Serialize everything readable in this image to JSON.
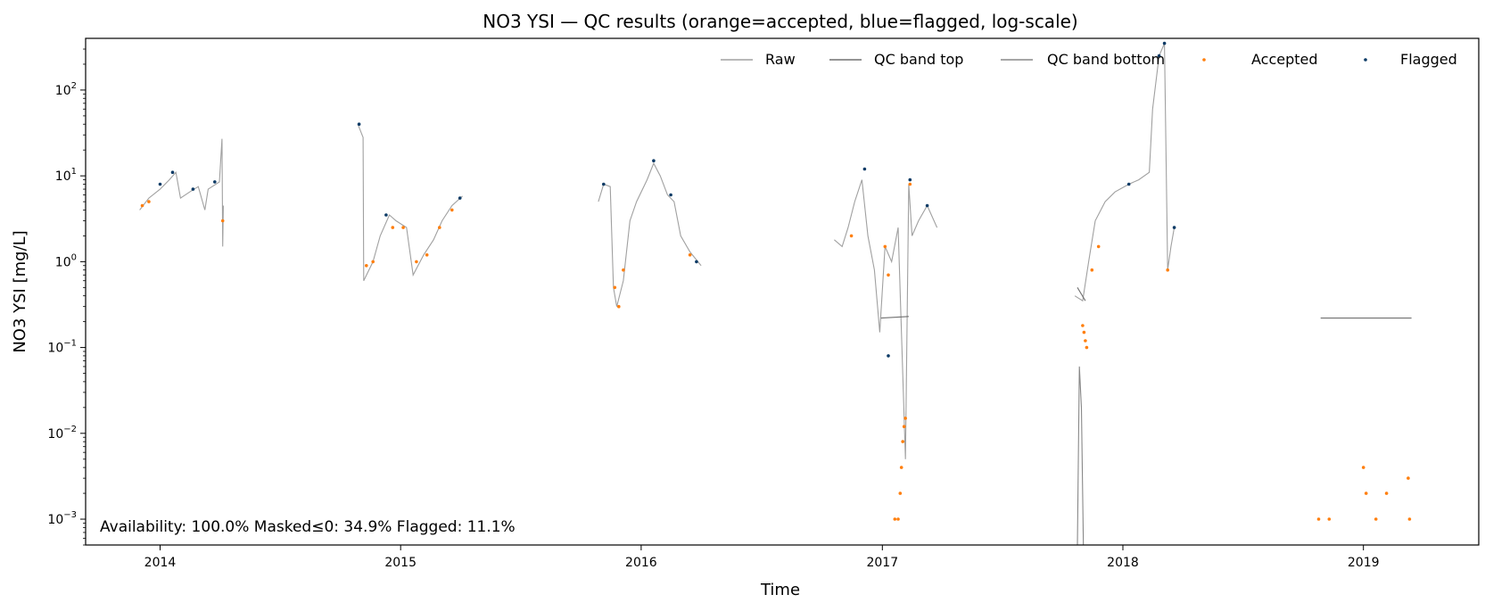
{
  "chart_data": {
    "type": "line",
    "title": "NO3 YSI — QC results (orange=accepted, blue=flagged, log-scale)",
    "xlabel": "Time",
    "ylabel": "NO3 YSI [mg/L]",
    "y_scale": "log",
    "xlim": [
      "2013-09-10",
      "2019-06-25"
    ],
    "ylim": [
      0.0005,
      400
    ],
    "x_ticks": [
      "2014",
      "2015",
      "2016",
      "2017",
      "2018",
      "2019"
    ],
    "y_ticks": [
      {
        "value": 0.001,
        "base": "10",
        "exp": "−3"
      },
      {
        "value": 0.01,
        "base": "10",
        "exp": "−2"
      },
      {
        "value": 0.1,
        "base": "10",
        "exp": "−1"
      },
      {
        "value": 1,
        "base": "10",
        "exp": "0"
      },
      {
        "value": 10,
        "base": "10",
        "exp": "1"
      },
      {
        "value": 100,
        "base": "10",
        "exp": "2"
      }
    ],
    "legend_position": "top-right",
    "grid": false,
    "annotation": "Availability: 100.0%   Masked≤0: 34.9%   Flagged: 11.1%",
    "series": [
      {
        "name": "Raw",
        "style": "line",
        "color": "#a0a0a0",
        "segments": [
          [
            [
              "2013-12-01",
              4.0
            ],
            [
              "2013-12-15",
              5.5
            ],
            [
              "2014-01-01",
              7.0
            ],
            [
              "2014-01-15",
              9.0
            ],
            [
              "2014-01-25",
              11.0
            ],
            [
              "2014-02-01",
              5.5
            ],
            [
              "2014-02-15",
              6.5
            ],
            [
              "2014-02-28",
              7.5
            ],
            [
              "2014-03-10",
              4.0
            ],
            [
              "2014-03-15",
              7.0
            ],
            [
              "2014-04-01",
              8.5
            ],
            [
              "2014-04-05",
              27.0
            ],
            [
              "2014-04-06",
              1.5
            ],
            [
              "2014-04-07",
              4.5
            ]
          ],
          [
            [
              "2014-10-28",
              40.0
            ],
            [
              "2014-11-05",
              28.0
            ],
            [
              "2014-11-06",
              0.6
            ],
            [
              "2014-11-20",
              1.0
            ],
            [
              "2014-12-01",
              2.0
            ],
            [
              "2014-12-15",
              3.5
            ],
            [
              "2014-12-25",
              3.0
            ],
            [
              "2015-01-10",
              2.5
            ],
            [
              "2015-01-20",
              0.7
            ],
            [
              "2015-02-05",
              1.2
            ],
            [
              "2015-02-20",
              1.8
            ],
            [
              "2015-03-05",
              3.0
            ],
            [
              "2015-03-20",
              4.5
            ],
            [
              "2015-04-05",
              5.8
            ]
          ],
          [
            [
              "2015-10-28",
              5.0
            ],
            [
              "2015-11-05",
              8.0
            ],
            [
              "2015-11-15",
              7.5
            ],
            [
              "2015-11-20",
              0.5
            ],
            [
              "2015-11-25",
              0.3
            ],
            [
              "2015-12-05",
              0.6
            ],
            [
              "2015-12-15",
              3.0
            ],
            [
              "2015-12-25",
              5.0
            ],
            [
              "2016-01-10",
              9.0
            ],
            [
              "2016-01-20",
              14.0
            ],
            [
              "2016-01-30",
              10.0
            ],
            [
              "2016-02-10",
              6.0
            ],
            [
              "2016-02-20",
              5.0
            ],
            [
              "2016-03-01",
              2.0
            ],
            [
              "2016-03-15",
              1.3
            ],
            [
              "2016-04-01",
              0.9
            ]
          ],
          [
            [
              "2016-10-20",
              1.8
            ],
            [
              "2016-11-01",
              1.5
            ],
            [
              "2016-11-10",
              2.5
            ],
            [
              "2016-11-20",
              5.0
            ],
            [
              "2016-12-01",
              9.0
            ],
            [
              "2016-12-10",
              2.0
            ],
            [
              "2016-12-20",
              0.8
            ],
            [
              "2016-12-28",
              0.15
            ],
            [
              "2017-01-05",
              1.5
            ],
            [
              "2017-01-15",
              1.0
            ],
            [
              "2017-01-25",
              2.5
            ],
            [
              "2017-02-05",
              0.005
            ],
            [
              "2017-02-10",
              8.0
            ],
            [
              "2017-02-15",
              2.0
            ],
            [
              "2017-02-25",
              3.0
            ],
            [
              "2017-03-10",
              4.5
            ],
            [
              "2017-03-25",
              2.5
            ]
          ],
          [
            [
              "2017-10-20",
              0.4
            ],
            [
              "2017-11-01",
              0.35
            ],
            [
              "2017-11-10",
              1.0
            ],
            [
              "2017-11-20",
              3.0
            ],
            [
              "2017-12-05",
              5.0
            ],
            [
              "2017-12-20",
              6.5
            ],
            [
              "2018-01-10",
              8.0
            ],
            [
              "2018-01-25",
              9.0
            ],
            [
              "2018-02-10",
              11.0
            ],
            [
              "2018-02-15",
              60.0
            ],
            [
              "2018-02-25",
              250.0
            ],
            [
              "2018-03-05",
              350.0
            ],
            [
              "2018-03-10",
              0.8
            ],
            [
              "2018-03-15",
              1.5
            ],
            [
              "2018-03-20",
              2.5
            ]
          ]
        ]
      },
      {
        "name": "QC band top",
        "style": "line",
        "color": "#707070",
        "segments": [
          [
            [
              "2016-12-30",
              0.22
            ],
            [
              "2017-02-10",
              0.23
            ]
          ],
          [
            [
              "2017-10-24",
              0.5
            ],
            [
              "2017-11-05",
              0.35
            ]
          ],
          [
            [
              "2018-10-28",
              0.22
            ],
            [
              "2019-03-15",
              0.22
            ]
          ]
        ]
      },
      {
        "name": "QC band bottom",
        "style": "line",
        "color": "#888888",
        "segments": [
          [
            [
              "2017-10-24",
              0.0005
            ],
            [
              "2017-10-27",
              0.06
            ],
            [
              "2017-10-30",
              0.02
            ],
            [
              "2017-11-02",
              0.0005
            ]
          ]
        ]
      },
      {
        "name": "Accepted",
        "style": "points",
        "color": "#ff7f0e",
        "points": [
          [
            "2013-12-05",
            4.5
          ],
          [
            "2013-12-15",
            5.0
          ],
          [
            "2014-04-06",
            3.0
          ],
          [
            "2014-11-10",
            0.9
          ],
          [
            "2014-11-20",
            1.0
          ],
          [
            "2014-12-20",
            2.5
          ],
          [
            "2015-01-05",
            2.5
          ],
          [
            "2015-01-25",
            1.0
          ],
          [
            "2015-02-10",
            1.2
          ],
          [
            "2015-03-01",
            2.5
          ],
          [
            "2015-03-20",
            4.0
          ],
          [
            "2015-11-22",
            0.5
          ],
          [
            "2015-11-28",
            0.3
          ],
          [
            "2015-12-05",
            0.8
          ],
          [
            "2016-03-15",
            1.2
          ],
          [
            "2016-11-15",
            2.0
          ],
          [
            "2017-01-05",
            1.5
          ],
          [
            "2017-01-10",
            0.7
          ],
          [
            "2017-01-28",
            0.002
          ],
          [
            "2017-01-30",
            0.004
          ],
          [
            "2017-02-01",
            0.008
          ],
          [
            "2017-02-03",
            0.012
          ],
          [
            "2017-02-05",
            0.015
          ],
          [
            "2017-01-20",
            0.001
          ],
          [
            "2017-01-25",
            0.001
          ],
          [
            "2017-02-12",
            8.0
          ],
          [
            "2017-11-01",
            0.18
          ],
          [
            "2017-11-03",
            0.15
          ],
          [
            "2017-11-05",
            0.12
          ],
          [
            "2017-11-07",
            0.1
          ],
          [
            "2017-11-15",
            0.8
          ],
          [
            "2017-11-25",
            1.5
          ],
          [
            "2018-03-10",
            0.8
          ],
          [
            "2018-10-25",
            0.001
          ],
          [
            "2018-11-10",
            0.001
          ],
          [
            "2019-01-01",
            0.004
          ],
          [
            "2019-01-05",
            0.002
          ],
          [
            "2019-01-20",
            0.001
          ],
          [
            "2019-02-05",
            0.002
          ],
          [
            "2019-03-10",
            0.003
          ],
          [
            "2019-03-12",
            0.001
          ]
        ]
      },
      {
        "name": "Flagged",
        "style": "points",
        "color": "#0d3b66",
        "points": [
          [
            "2014-01-01",
            8.0
          ],
          [
            "2014-01-20",
            11.0
          ],
          [
            "2014-02-20",
            7.0
          ],
          [
            "2014-03-25",
            8.5
          ],
          [
            "2014-10-30",
            40.0
          ],
          [
            "2014-12-10",
            3.5
          ],
          [
            "2015-04-01",
            5.5
          ],
          [
            "2015-11-05",
            8.0
          ],
          [
            "2016-01-20",
            15.0
          ],
          [
            "2016-02-15",
            6.0
          ],
          [
            "2016-03-25",
            1.0
          ],
          [
            "2016-12-05",
            12.0
          ],
          [
            "2017-02-12",
            9.0
          ],
          [
            "2017-03-10",
            4.5
          ],
          [
            "2017-01-10",
            0.08
          ],
          [
            "2018-01-10",
            8.0
          ],
          [
            "2018-02-25",
            250.0
          ],
          [
            "2018-03-05",
            350.0
          ],
          [
            "2018-03-20",
            2.5
          ]
        ]
      }
    ]
  }
}
